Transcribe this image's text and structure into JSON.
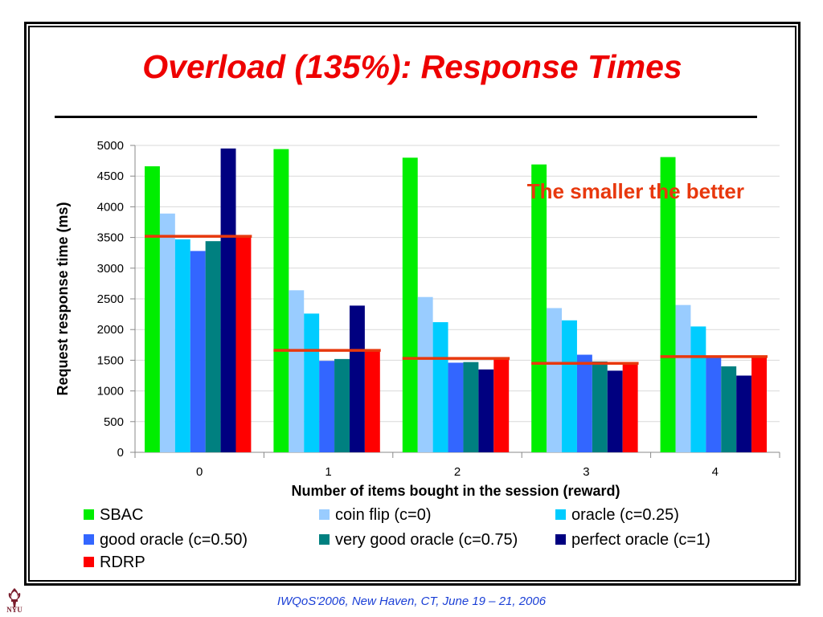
{
  "title": "Overload (135%): Response Times",
  "annotation": "The smaller the better",
  "footer": "IWQoS'2006, New Haven, CT, June 19 – 21, 2006",
  "logo_text": "NYU",
  "colors": {
    "title": "#ee0000",
    "annotation": "#e8380d",
    "footer": "#1a3fd6",
    "rdrp_line": "#e8380d"
  },
  "chart_data": {
    "type": "bar",
    "xlabel": "Number of items bought in the session (reward)",
    "ylabel": "Request response time (ms)",
    "ylim": [
      0,
      5000
    ],
    "yticks": [
      0,
      500,
      1000,
      1500,
      2000,
      2500,
      3000,
      3500,
      4000,
      4500,
      5000
    ],
    "grid": true,
    "legend_position": "bottom",
    "categories": [
      "0",
      "1",
      "2",
      "3",
      "4"
    ],
    "series": [
      {
        "name": "SBAC",
        "color": "#00ee00",
        "values": [
          4660,
          4940,
          4800,
          4690,
          4810
        ]
      },
      {
        "name": "coin flip (c=0)",
        "color": "#99ccff",
        "values": [
          3890,
          2640,
          2530,
          2350,
          2400
        ]
      },
      {
        "name": "oracle (c=0.25)",
        "color": "#00ccff",
        "values": [
          3470,
          2260,
          2120,
          2150,
          2050
        ]
      },
      {
        "name": "good oracle (c=0.50)",
        "color": "#3366ff",
        "values": [
          3280,
          1490,
          1460,
          1590,
          1540
        ]
      },
      {
        "name": "very good oracle (c=0.75)",
        "color": "#008080",
        "values": [
          3440,
          1520,
          1470,
          1480,
          1400
        ]
      },
      {
        "name": "perfect oracle (c=1)",
        "color": "#000080",
        "values": [
          4950,
          2390,
          1350,
          1330,
          1250
        ]
      },
      {
        "name": "RDRP",
        "color": "#ff0000",
        "values": [
          3520,
          1660,
          1530,
          1450,
          1560
        ]
      }
    ]
  }
}
